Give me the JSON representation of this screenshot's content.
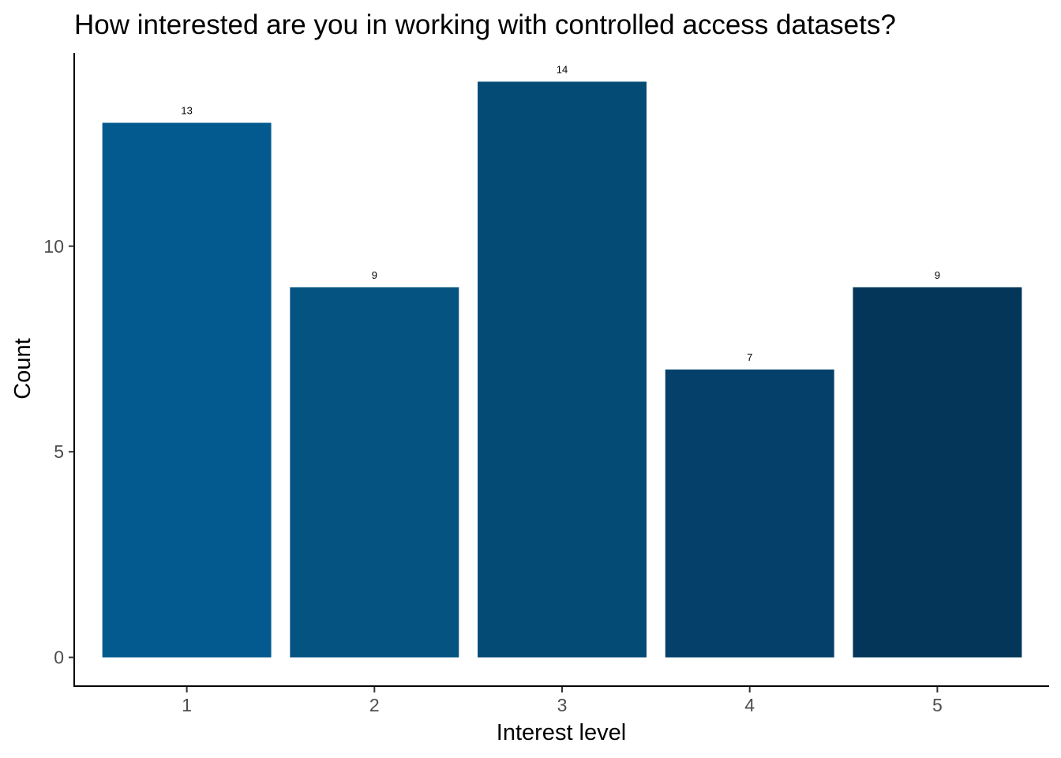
{
  "chart_data": {
    "type": "bar",
    "title": "How interested are you in working with controlled access datasets?",
    "xlabel": "Interest level",
    "ylabel": "Count",
    "categories": [
      "1",
      "2",
      "3",
      "4",
      "5"
    ],
    "values": [
      13,
      9,
      14,
      7,
      9
    ],
    "data_labels": [
      "13",
      "9",
      "14",
      "7",
      "9"
    ],
    "colors": [
      "#035a8f",
      "#045381",
      "#044b76",
      "#04406a",
      "#033658"
    ],
    "ylim": [
      -0.7,
      14.7
    ],
    "yticks": [
      0,
      5,
      10
    ],
    "ytick_labels": [
      "0",
      "5",
      "10"
    ],
    "grid": false,
    "legend": "none"
  }
}
